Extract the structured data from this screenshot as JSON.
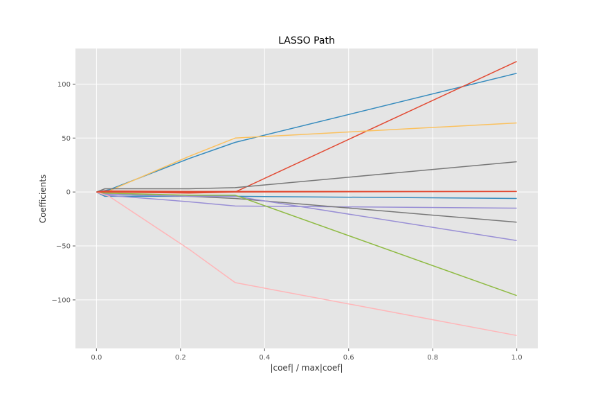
{
  "chart_data": {
    "type": "line",
    "title": "LASSO Path",
    "xlabel": "|coef| / max|coef|",
    "ylabel": "Coefficients",
    "xlim": [
      -0.05,
      1.05
    ],
    "ylim": [
      -145,
      133
    ],
    "xticks": [
      0.0,
      0.2,
      0.4,
      0.6,
      0.8,
      1.0
    ],
    "xtick_labels": [
      "0.0",
      "0.2",
      "0.4",
      "0.6",
      "0.8",
      "1.0"
    ],
    "yticks": [
      -100,
      -50,
      0,
      50,
      100
    ],
    "ytick_labels": [
      "−100",
      "−50",
      "0",
      "50",
      "100"
    ],
    "grid": true,
    "background": "#e5e5e5",
    "series": [
      {
        "color": "#348abd",
        "points": [
          [
            0,
            0
          ],
          [
            0.03,
            2
          ],
          [
            0.22,
            31
          ],
          [
            0.33,
            46
          ],
          [
            1.0,
            110
          ]
        ]
      },
      {
        "color": "#e24a33",
        "points": [
          [
            0,
            0
          ],
          [
            0.33,
            0
          ],
          [
            1.0,
            121
          ]
        ]
      },
      {
        "color": "#fbc15e",
        "points": [
          [
            0,
            0
          ],
          [
            0.03,
            1
          ],
          [
            0.22,
            33
          ],
          [
            0.33,
            50
          ],
          [
            1.0,
            64
          ]
        ]
      },
      {
        "color": "#777777",
        "points": [
          [
            0,
            0
          ],
          [
            0.02,
            3
          ],
          [
            0.22,
            3
          ],
          [
            0.33,
            4
          ],
          [
            1.0,
            28
          ]
        ]
      },
      {
        "color": "#e24a33",
        "points": [
          [
            0,
            0
          ],
          [
            0.02,
            1
          ],
          [
            0.22,
            0.5
          ],
          [
            0.33,
            0.5
          ],
          [
            1.0,
            0.5
          ]
        ]
      },
      {
        "color": "#348abd",
        "points": [
          [
            0,
            0
          ],
          [
            0.02,
            -4
          ],
          [
            0.22,
            -4
          ],
          [
            0.33,
            -4
          ],
          [
            1.0,
            -6
          ]
        ]
      },
      {
        "color": "#988ed5",
        "points": [
          [
            0,
            0
          ],
          [
            0.02,
            -3
          ],
          [
            0.22,
            -9
          ],
          [
            0.33,
            -13
          ],
          [
            1.0,
            -15
          ]
        ]
      },
      {
        "color": "#777777",
        "points": [
          [
            0,
            0
          ],
          [
            0.02,
            -2
          ],
          [
            0.22,
            -4
          ],
          [
            0.33,
            -6
          ],
          [
            1.0,
            -28
          ]
        ]
      },
      {
        "color": "#988ed5",
        "points": [
          [
            0,
            0
          ],
          [
            0.02,
            -2
          ],
          [
            0.22,
            -4
          ],
          [
            0.33,
            -4
          ],
          [
            1.0,
            -45
          ]
        ]
      },
      {
        "color": "#8eba42",
        "points": [
          [
            0,
            0
          ],
          [
            0.02,
            -1
          ],
          [
            0.22,
            -3
          ],
          [
            0.33,
            -3
          ],
          [
            1.0,
            -96
          ]
        ]
      },
      {
        "color": "#ffb5b8",
        "points": [
          [
            0,
            0
          ],
          [
            0.03,
            -4
          ],
          [
            0.22,
            -53
          ],
          [
            0.33,
            -84
          ],
          [
            1.0,
            -133
          ]
        ]
      },
      {
        "color": "#e24a33",
        "points": [
          [
            0,
            0
          ],
          [
            0.02,
            0
          ],
          [
            0.22,
            -1
          ],
          [
            0.33,
            0
          ],
          [
            1.0,
            0.5
          ]
        ]
      }
    ]
  }
}
